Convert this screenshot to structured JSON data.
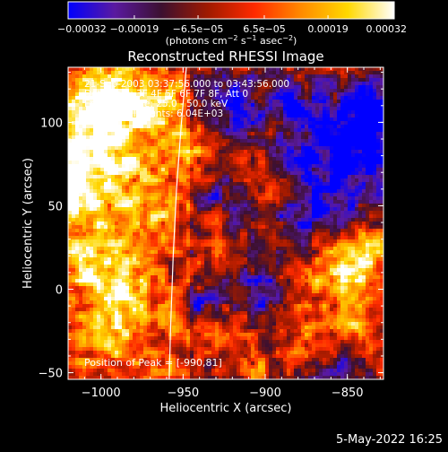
{
  "chart_data": {
    "type": "heatmap",
    "title": "Reconstructed RHESSI Image",
    "xlabel": "Heliocentric X (arcsec)",
    "ylabel": "Heliocentric Y (arcsec)",
    "xlim": [
      -1020,
      -828
    ],
    "ylim": [
      -54,
      133
    ],
    "x_ticks": [
      {
        "value": -1000,
        "label": "−1000"
      },
      {
        "value": -950,
        "label": "−950"
      },
      {
        "value": -900,
        "label": "−900"
      },
      {
        "value": -850,
        "label": "−850"
      }
    ],
    "y_ticks": [
      {
        "value": -50,
        "label": "−50"
      },
      {
        "value": 0,
        "label": "0"
      },
      {
        "value": 50,
        "label": "50"
      },
      {
        "value": 100,
        "label": "100"
      }
    ],
    "annotations": [
      "21-Sep-2003 03:37:56.000 to 03:43:56.000",
      "Detectors: 3F 4F 5F 6F 7F 8F, Att 0",
      "Energy Range: 25.0 - 50.0 keV",
      "Clean     Total counts: 6.04E+03"
    ],
    "peak_text": "Position of Peak = [-990,81]",
    "peak": [
      -990,
      81
    ],
    "colorbar": {
      "min": -0.00032,
      "max": 0.00032,
      "tick_values": [
        -0.00032,
        -0.00019,
        -6.5e-05,
        6.5e-05,
        0.00019,
        0.00032
      ],
      "tick_labels": [
        "−0.00032",
        "−0.00019",
        "−6.5e−05",
        "6.5e−05",
        "0.00019",
        "0.00032"
      ],
      "units_prefix": "(photons cm",
      "units_exp1": "−2",
      "units_mid": " s",
      "units_exp2": "−1",
      "units_mid2": " asec",
      "units_exp3": "−2",
      "units_suffix": ")",
      "colors": [
        "#0000ff",
        "#5a1aa0",
        "#3c1030",
        "#a01a00",
        "#ff2a00",
        "#ff8a00",
        "#ffd800",
        "#ffffff"
      ]
    },
    "limb_points": [
      [
        -948,
        133
      ],
      [
        -951,
        100
      ],
      [
        -954,
        60
      ],
      [
        -956,
        20
      ],
      [
        -957.5,
        -20
      ],
      [
        -958.5,
        -54
      ]
    ],
    "limb_color": "#ffffff",
    "hot_regions": [
      {
        "x": -1005,
        "y": 88,
        "r": 24,
        "v": 0.00032
      },
      {
        "x": -992,
        "y": 115,
        "r": 14,
        "v": 0.00024
      },
      {
        "x": -1012,
        "y": 55,
        "r": 12,
        "v": 0.0002
      },
      {
        "x": -1005,
        "y": 15,
        "r": 16,
        "v": 0.00022
      },
      {
        "x": -990,
        "y": -25,
        "r": 14,
        "v": 0.0002
      },
      {
        "x": -968,
        "y": 45,
        "r": 13,
        "v": 0.00016
      },
      {
        "x": -960,
        "y": 110,
        "r": 10,
        "v": 0.00014
      },
      {
        "x": -945,
        "y": 80,
        "r": 11,
        "v": 0.00015
      },
      {
        "x": -935,
        "y": 20,
        "r": 9,
        "v": 0.00011
      },
      {
        "x": -930,
        "y": -25,
        "r": 10,
        "v": 0.00013
      },
      {
        "x": -905,
        "y": -48,
        "r": 9,
        "v": 0.00014
      },
      {
        "x": -880,
        "y": -30,
        "r": 10,
        "v": 0.00013
      },
      {
        "x": -855,
        "y": 10,
        "r": 16,
        "v": 0.00028
      },
      {
        "x": -838,
        "y": 20,
        "r": 10,
        "v": 0.00022
      },
      {
        "x": -845,
        "y": -20,
        "r": 9,
        "v": 0.00018
      },
      {
        "x": -900,
        "y": 65,
        "r": 9,
        "v": 0.00013
      },
      {
        "x": -980,
        "y": 0,
        "r": 10,
        "v": 0.00012
      }
    ],
    "cold_regions": [
      {
        "x": -845,
        "y": 85,
        "r": 22,
        "v": -0.00032
      },
      {
        "x": -835,
        "y": 110,
        "r": 12,
        "v": -0.00022
      },
      {
        "x": -870,
        "y": 45,
        "r": 14,
        "v": -0.00024
      },
      {
        "x": -920,
        "y": 110,
        "r": 12,
        "v": -0.00022
      },
      {
        "x": -905,
        "y": 0,
        "r": 11,
        "v": -0.00018
      },
      {
        "x": -938,
        "y": -10,
        "r": 9,
        "v": -0.00016
      },
      {
        "x": -885,
        "y": 110,
        "r": 11,
        "v": -0.00018
      },
      {
        "x": -925,
        "y": 60,
        "r": 10,
        "v": -0.00014
      },
      {
        "x": -855,
        "y": -48,
        "r": 9,
        "v": -0.00016
      },
      {
        "x": -950,
        "y": 20,
        "r": 8,
        "v": -0.00012
      },
      {
        "x": -880,
        "y": 80,
        "r": 8,
        "v": -0.00014
      }
    ]
  },
  "footer": {
    "date": "5-May-2022 16:25"
  }
}
